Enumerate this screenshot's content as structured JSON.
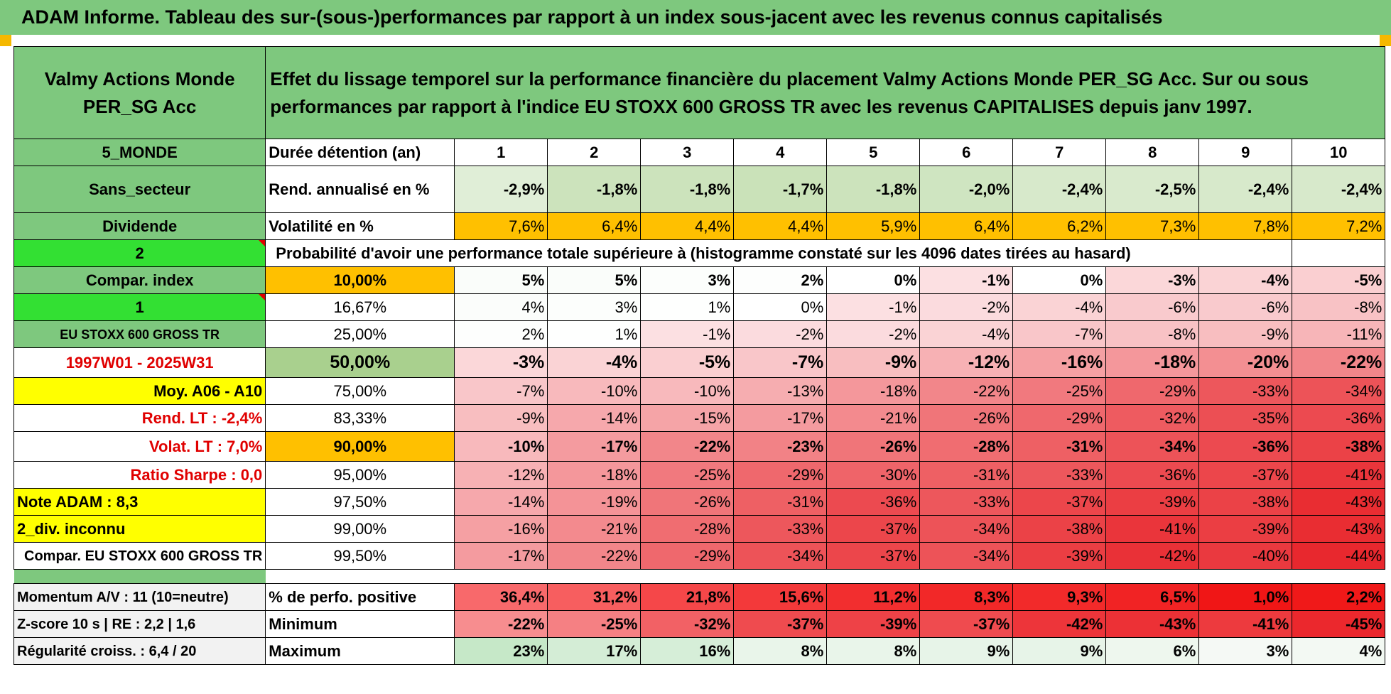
{
  "banner": "ADAM Informe. Tableau des sur-(sous-)performances par rapport à un index sous-jacent avec les revenus connus capitalisés",
  "fund_title": "Valmy Actions Monde PER_SG Acc",
  "description": "Effet du lissage temporel sur la performance financière du placement Valmy Actions Monde PER_SG Acc. Sur ou sous performances par rapport à l'indice EU STOXX 600 GROSS TR avec les revenus CAPITALISES depuis janv 1997.",
  "side": {
    "zone": "5_MONDE",
    "sector": "Sans_secteur",
    "dividend": "Dividende",
    "dividend_code": "2",
    "compar_index": "Compar. index",
    "compar_code": "1",
    "index_name": "EU STOXX 600 GROSS TR",
    "period": "1997W01 - 2025W31",
    "moy": "Moy. A06 - A10",
    "rend_lt": "Rend. LT :    -2,4%",
    "volat_lt": "Volat. LT :    7,0%",
    "sharpe": "Ratio Sharpe :    0,0",
    "note": "Note ADAM : 8,3",
    "div_inconnu": "2_div. inconnu",
    "compar_full": "Compar. EU STOXX 600 GROSS TR",
    "momentum": "Momentum A/V : 11 (10=neutre)",
    "zscore": "Z-score 10 s | RE : 2,2 | 1,6",
    "regularite": "Régularité croiss. : 6,4 / 20"
  },
  "header": {
    "label": "Durée détention (an)",
    "years": [
      "1",
      "2",
      "3",
      "4",
      "5",
      "6",
      "7",
      "8",
      "9",
      "10"
    ]
  },
  "rend": {
    "label": "Rend. annualisé en %",
    "values": [
      "-2,9%",
      "-1,8%",
      "-1,8%",
      "-1,7%",
      "-1,8%",
      "-2,0%",
      "-2,4%",
      "-2,5%",
      "-2,4%",
      "-2,4%"
    ]
  },
  "vol": {
    "label": "Volatilité en %",
    "values": [
      "7,6%",
      "6,4%",
      "4,4%",
      "4,4%",
      "5,9%",
      "6,4%",
      "6,2%",
      "7,3%",
      "7,8%",
      "7,2%"
    ]
  },
  "prob_title": "Probabilité d'avoir une performance totale supérieure à (histogramme constaté sur les 4096 dates tirées au hasard)",
  "quantiles": [
    {
      "p": "10,00%",
      "values": [
        "5%",
        "5%",
        "3%",
        "2%",
        "0%",
        "-1%",
        "0%",
        "-3%",
        "-4%",
        "-5%"
      ]
    },
    {
      "p": "16,67%",
      "values": [
        "4%",
        "3%",
        "1%",
        "0%",
        "-1%",
        "-2%",
        "-4%",
        "-6%",
        "-6%",
        "-8%"
      ]
    },
    {
      "p": "25,00%",
      "values": [
        "2%",
        "1%",
        "-1%",
        "-2%",
        "-2%",
        "-4%",
        "-7%",
        "-8%",
        "-9%",
        "-11%"
      ]
    },
    {
      "p": "50,00%",
      "values": [
        "-3%",
        "-4%",
        "-5%",
        "-7%",
        "-9%",
        "-12%",
        "-16%",
        "-18%",
        "-20%",
        "-22%"
      ]
    },
    {
      "p": "75,00%",
      "values": [
        "-7%",
        "-10%",
        "-10%",
        "-13%",
        "-18%",
        "-22%",
        "-25%",
        "-29%",
        "-33%",
        "-34%"
      ]
    },
    {
      "p": "83,33%",
      "values": [
        "-9%",
        "-14%",
        "-15%",
        "-17%",
        "-21%",
        "-26%",
        "-29%",
        "-32%",
        "-35%",
        "-36%"
      ]
    },
    {
      "p": "90,00%",
      "values": [
        "-10%",
        "-17%",
        "-22%",
        "-23%",
        "-26%",
        "-28%",
        "-31%",
        "-34%",
        "-36%",
        "-38%"
      ]
    },
    {
      "p": "95,00%",
      "values": [
        "-12%",
        "-18%",
        "-25%",
        "-29%",
        "-30%",
        "-31%",
        "-33%",
        "-36%",
        "-37%",
        "-41%"
      ]
    },
    {
      "p": "97,50%",
      "values": [
        "-14%",
        "-19%",
        "-26%",
        "-31%",
        "-36%",
        "-33%",
        "-37%",
        "-39%",
        "-38%",
        "-43%"
      ]
    },
    {
      "p": "99,00%",
      "values": [
        "-16%",
        "-21%",
        "-28%",
        "-33%",
        "-37%",
        "-34%",
        "-38%",
        "-41%",
        "-39%",
        "-43%"
      ]
    },
    {
      "p": "99,50%",
      "values": [
        "-17%",
        "-22%",
        "-29%",
        "-34%",
        "-37%",
        "-34%",
        "-39%",
        "-42%",
        "-40%",
        "-44%"
      ]
    }
  ],
  "stats": [
    {
      "label": "% de perfo. positive",
      "values": [
        "36,4%",
        "31,2%",
        "21,8%",
        "15,6%",
        "11,2%",
        "8,3%",
        "9,3%",
        "6,5%",
        "1,0%",
        "2,2%"
      ]
    },
    {
      "label": "Minimum",
      "values": [
        "-22%",
        "-25%",
        "-32%",
        "-37%",
        "-39%",
        "-37%",
        "-42%",
        "-43%",
        "-41%",
        "-45%"
      ]
    },
    {
      "label": "Maximum",
      "values": [
        "23%",
        "17%",
        "16%",
        "8%",
        "8%",
        "9%",
        "9%",
        "6%",
        "3%",
        "4%"
      ]
    }
  ],
  "colors": {
    "header_green": "#7ec87e",
    "bright_green": "#33e033",
    "yellow": "#ffff00",
    "orange": "#ffc000",
    "negative_red": "#e8242a",
    "positive_green": "#63be7b"
  }
}
